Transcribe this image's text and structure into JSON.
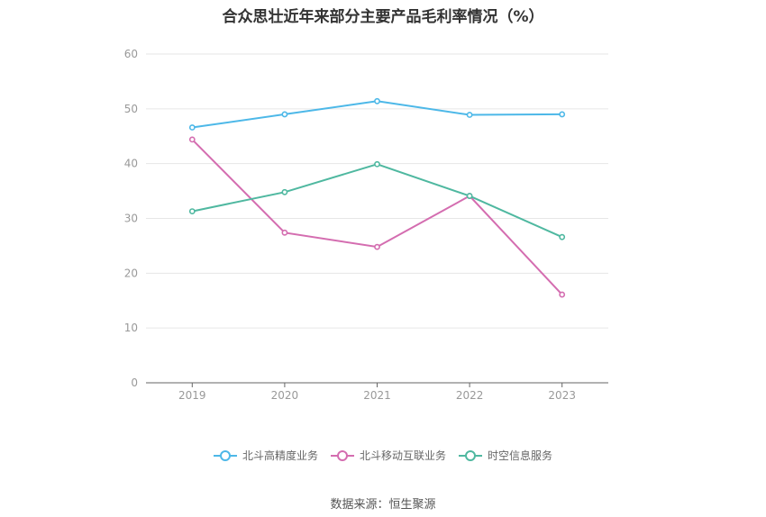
{
  "chart_data": {
    "type": "line",
    "title": "合众思壮近年来部分主要产品毛利率情况（%）",
    "x": [
      "2019",
      "2020",
      "2021",
      "2022",
      "2023"
    ],
    "ylim": [
      0,
      60
    ],
    "yticks": [
      0,
      10,
      20,
      30,
      40,
      50,
      60
    ],
    "grid": true,
    "legend_position": "bottom",
    "series": [
      {
        "name": "北斗高精度业务",
        "color": "#4db8e8",
        "values": [
          46.6,
          49.0,
          51.4,
          48.9,
          49.0
        ]
      },
      {
        "name": "北斗移动互联业务",
        "color": "#d46db0",
        "values": [
          44.4,
          27.4,
          24.8,
          34.1,
          16.1
        ]
      },
      {
        "name": "时空信息服务",
        "color": "#4fb8a0",
        "values": [
          31.3,
          34.8,
          39.9,
          34.1,
          26.6
        ]
      }
    ]
  },
  "source_label": "数据来源：恒生聚源"
}
